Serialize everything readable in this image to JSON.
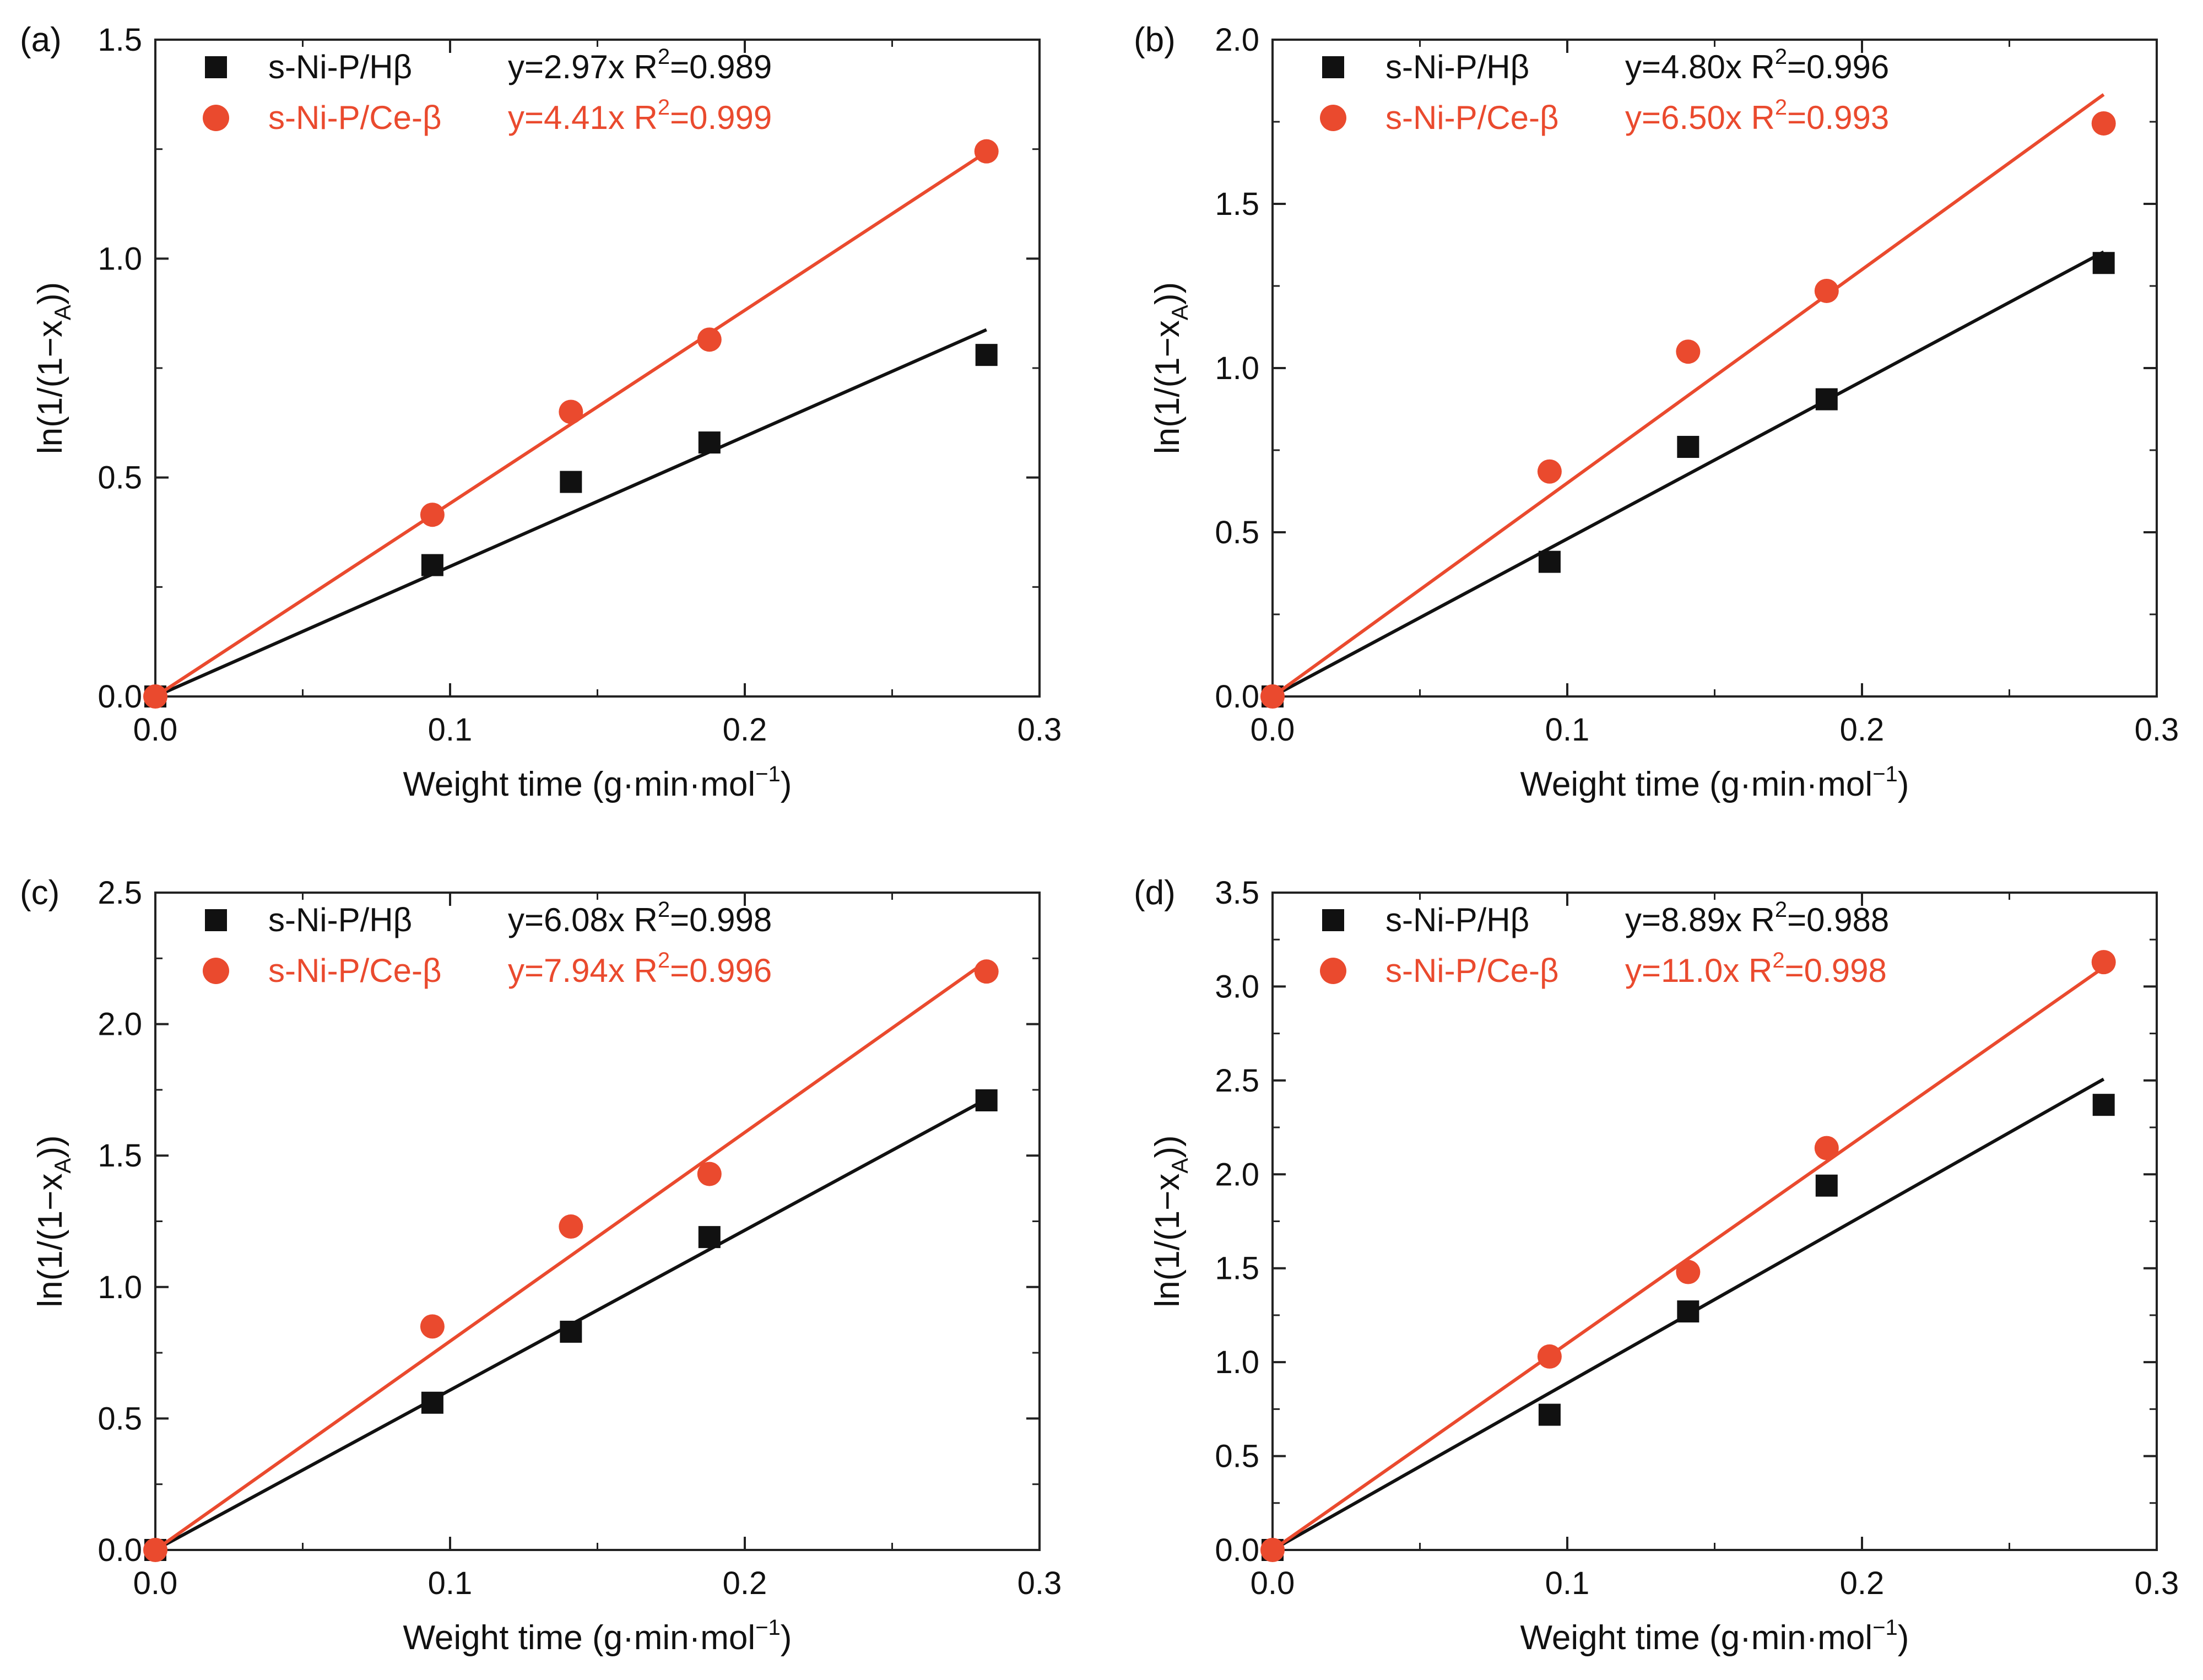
{
  "chart_data": [
    {
      "panel": "(a)",
      "type": "scatter",
      "xlabel": "Weight time (g·min·mol",
      "xlabel_sup": "−1",
      "xlabel_close": ")",
      "ylabel_main": "ln(1/(1−x",
      "ylabel_sub": "A",
      "ylabel_close": "))",
      "xlim": [
        0,
        0.3
      ],
      "ylim": [
        0,
        1.5
      ],
      "xticks": [
        "0.0",
        "0.1",
        "0.2",
        "0.3"
      ],
      "yticks": [
        "0.0",
        "0.5",
        "1.0",
        "1.5"
      ],
      "series": [
        {
          "name": "s-Ni-P/Hβ",
          "marker": "square",
          "color": "#111111",
          "fit_text": "y=2.97x R",
          "r2_sup": "2",
          "r2_value": "=0.989",
          "slope": 2.97,
          "x": [
            0.0,
            0.094,
            0.141,
            0.188,
            0.282
          ],
          "y": [
            0.0,
            0.3,
            0.49,
            0.58,
            0.78
          ]
        },
        {
          "name": "s-Ni-P/Ce-β",
          "marker": "circle",
          "color": "#ea4a2e",
          "fit_text": "y=4.41x R",
          "r2_sup": "2",
          "r2_value": "=0.999",
          "slope": 4.41,
          "x": [
            0.0,
            0.094,
            0.141,
            0.188,
            0.282
          ],
          "y": [
            0.0,
            0.415,
            0.65,
            0.815,
            1.245
          ]
        }
      ]
    },
    {
      "panel": "(b)",
      "type": "scatter",
      "xlabel": "Weight time (g·min·mol",
      "xlabel_sup": "−1",
      "xlabel_close": ")",
      "ylabel_main": "ln(1/(1−x",
      "ylabel_sub": "A",
      "ylabel_close": "))",
      "xlim": [
        0,
        0.3
      ],
      "ylim": [
        0,
        2.0
      ],
      "xticks": [
        "0.0",
        "0.1",
        "0.2",
        "0.3"
      ],
      "yticks": [
        "0.0",
        "0.5",
        "1.0",
        "1.5",
        "2.0"
      ],
      "series": [
        {
          "name": "s-Ni-P/Hβ",
          "marker": "square",
          "color": "#111111",
          "fit_text": "y=4.80x R",
          "r2_sup": "2",
          "r2_value": "=0.996",
          "slope": 4.8,
          "x": [
            0.0,
            0.094,
            0.141,
            0.188,
            0.282
          ],
          "y": [
            0.0,
            0.41,
            0.76,
            0.905,
            1.32
          ]
        },
        {
          "name": "s-Ni-P/Ce-β",
          "marker": "circle",
          "color": "#ea4a2e",
          "fit_text": "y=6.50x R",
          "r2_sup": "2",
          "r2_value": "=0.993",
          "slope": 6.5,
          "x": [
            0.0,
            0.094,
            0.141,
            0.188,
            0.282
          ],
          "y": [
            0.0,
            0.685,
            1.05,
            1.235,
            1.745
          ]
        }
      ]
    },
    {
      "panel": "(c)",
      "type": "scatter",
      "xlabel": "Weight time (g·min·mol",
      "xlabel_sup": "−1",
      "xlabel_close": ")",
      "ylabel_main": "ln(1/(1−x",
      "ylabel_sub": "A",
      "ylabel_close": "))",
      "xlim": [
        0,
        0.3
      ],
      "ylim": [
        0,
        2.5
      ],
      "xticks": [
        "0.0",
        "0.1",
        "0.2",
        "0.3"
      ],
      "yticks": [
        "0.0",
        "0.5",
        "1.0",
        "1.5",
        "2.0",
        "2.5"
      ],
      "series": [
        {
          "name": "s-Ni-P/Hβ",
          "marker": "square",
          "color": "#111111",
          "fit_text": "y=6.08x R",
          "r2_sup": "2",
          "r2_value": "=0.998",
          "slope": 6.08,
          "x": [
            0.0,
            0.094,
            0.141,
            0.188,
            0.282
          ],
          "y": [
            0.0,
            0.56,
            0.83,
            1.19,
            1.71
          ]
        },
        {
          "name": "s-Ni-P/Ce-β",
          "marker": "circle",
          "color": "#ea4a2e",
          "fit_text": "y=7.94x R",
          "r2_sup": "2",
          "r2_value": "=0.996",
          "slope": 7.94,
          "x": [
            0.0,
            0.094,
            0.141,
            0.188,
            0.282
          ],
          "y": [
            0.0,
            0.85,
            1.23,
            1.43,
            2.2
          ]
        }
      ]
    },
    {
      "panel": "(d)",
      "type": "scatter",
      "xlabel": "Weight time (g·min·mol",
      "xlabel_sup": "−1",
      "xlabel_close": ")",
      "ylabel_main": "ln(1/(1−x",
      "ylabel_sub": "A",
      "ylabel_close": "))",
      "xlim": [
        0,
        0.3
      ],
      "ylim": [
        0,
        3.5
      ],
      "xticks": [
        "0.0",
        "0.1",
        "0.2",
        "0.3"
      ],
      "yticks": [
        "0.0",
        "0.5",
        "1.0",
        "1.5",
        "2.0",
        "2.5",
        "3.0",
        "3.5"
      ],
      "series": [
        {
          "name": "s-Ni-P/Hβ",
          "marker": "square",
          "color": "#111111",
          "fit_text": "y=8.89x R",
          "r2_sup": "2",
          "r2_value": "=0.988",
          "slope": 8.89,
          "x": [
            0.0,
            0.094,
            0.141,
            0.188,
            0.282
          ],
          "y": [
            0.0,
            0.72,
            1.27,
            1.94,
            2.37
          ]
        },
        {
          "name": "s-Ni-P/Ce-β",
          "marker": "circle",
          "color": "#ea4a2e",
          "fit_text": "y=11.0x R",
          "r2_sup": "2",
          "r2_value": "=0.998",
          "slope": 11.0,
          "x": [
            0.0,
            0.094,
            0.141,
            0.188,
            0.282
          ],
          "y": [
            0.0,
            1.03,
            1.48,
            2.14,
            3.13
          ]
        }
      ]
    }
  ]
}
